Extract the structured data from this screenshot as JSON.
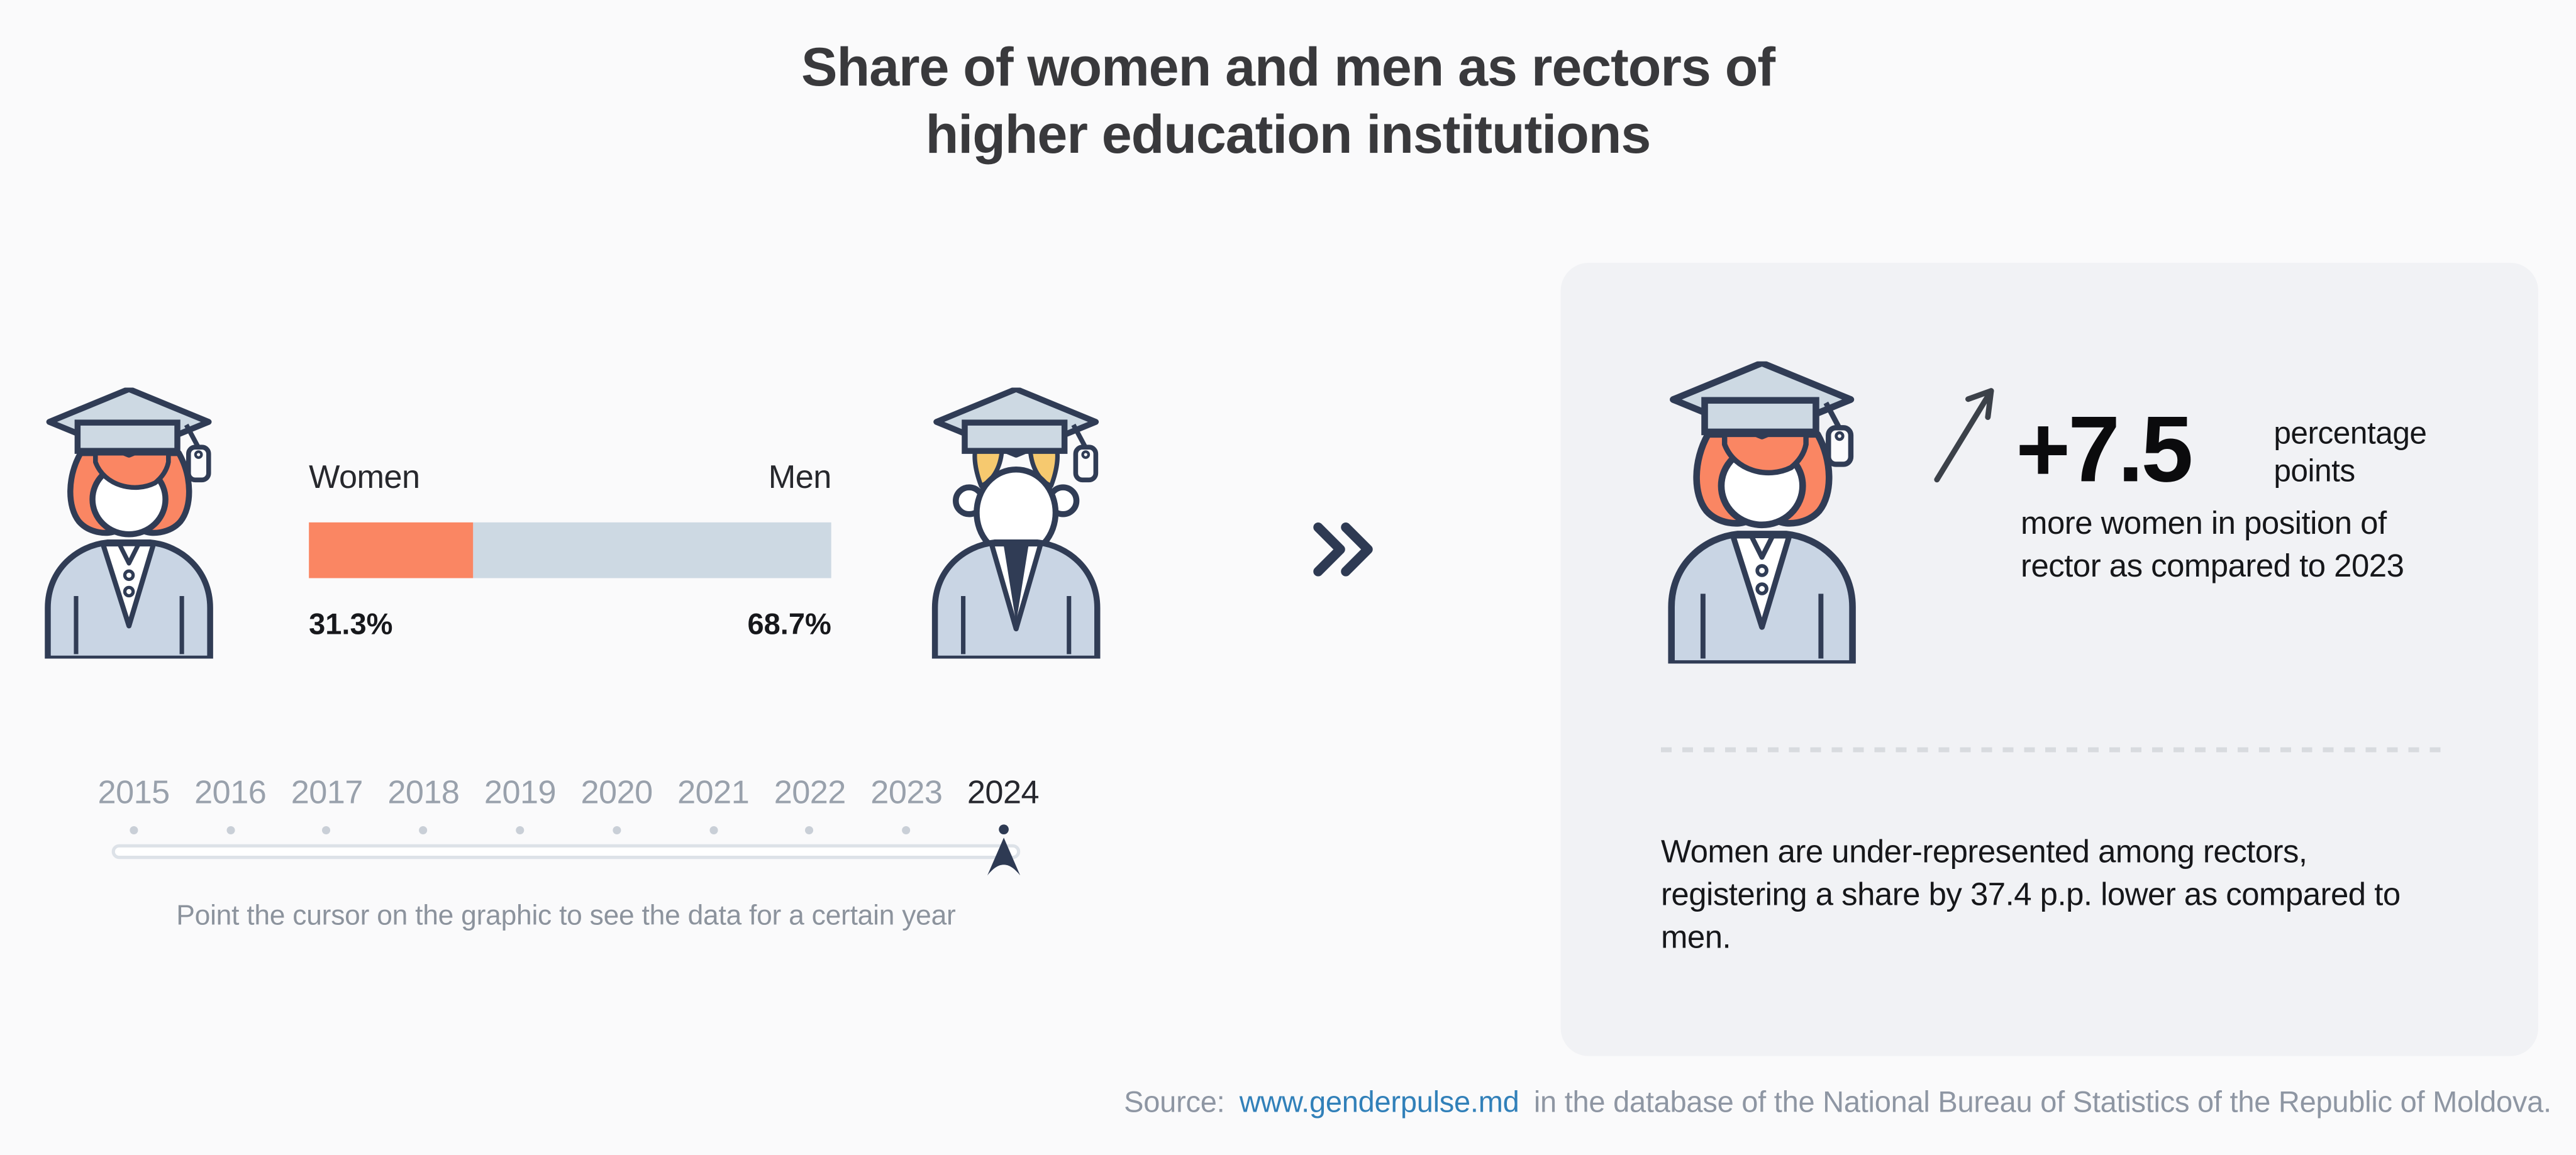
{
  "title": {
    "line1": "Share of women and men as rectors of",
    "line2": "higher education institutions"
  },
  "comparison": {
    "women_label": "Women",
    "men_label": "Men",
    "women_value": "31.3%",
    "men_value": "68.7%"
  },
  "timeline": {
    "years": [
      "2015",
      "2016",
      "2017",
      "2018",
      "2019",
      "2020",
      "2021",
      "2022",
      "2023",
      "2024"
    ],
    "selected_year": "2024",
    "hint": "Point the cursor on the graphic to see the data for a certain year"
  },
  "insight": {
    "delta_value": "+7.5",
    "delta_unit": "percentage points",
    "delta_caption": "more women in position of rector as compared to 2023",
    "summary": "Women are under-represented among rectors, registering a share by 37.4 p.p. lower as compared to men."
  },
  "footer": {
    "prefix": "Source:",
    "link": "www.genderpulse.md",
    "suffix": "in the database of the National Bureau of Statistics of the Republic of Moldova."
  },
  "colors": {
    "women_accent": "#fa8663",
    "men_accent": "#cdd9e3",
    "outline_navy": "#303c55",
    "man_hair_yellow": "#f6c96f",
    "link_blue": "#3180b9",
    "panel_bg": "#f1f2f5",
    "page_bg": "#fafafb",
    "muted_gray": "#99a1ac"
  },
  "chart_data": {
    "type": "bar",
    "title": "Share of women and men as rectors of higher education institutions",
    "categories": [
      "Women",
      "Men"
    ],
    "values": [
      31.3,
      68.7
    ],
    "unit": "%",
    "selected_year": 2024,
    "years_available": [
      2015,
      2016,
      2017,
      2018,
      2019,
      2020,
      2021,
      2022,
      2023,
      2024
    ],
    "orientation": "horizontal-stacked",
    "grid": false,
    "legend_position": "above-bar",
    "annotations": [
      "+7.5 percentage points more women in position of rector as compared to 2023",
      "Women are under-represented among rectors, registering a share by 37.4 p.p. lower as compared to men."
    ]
  }
}
